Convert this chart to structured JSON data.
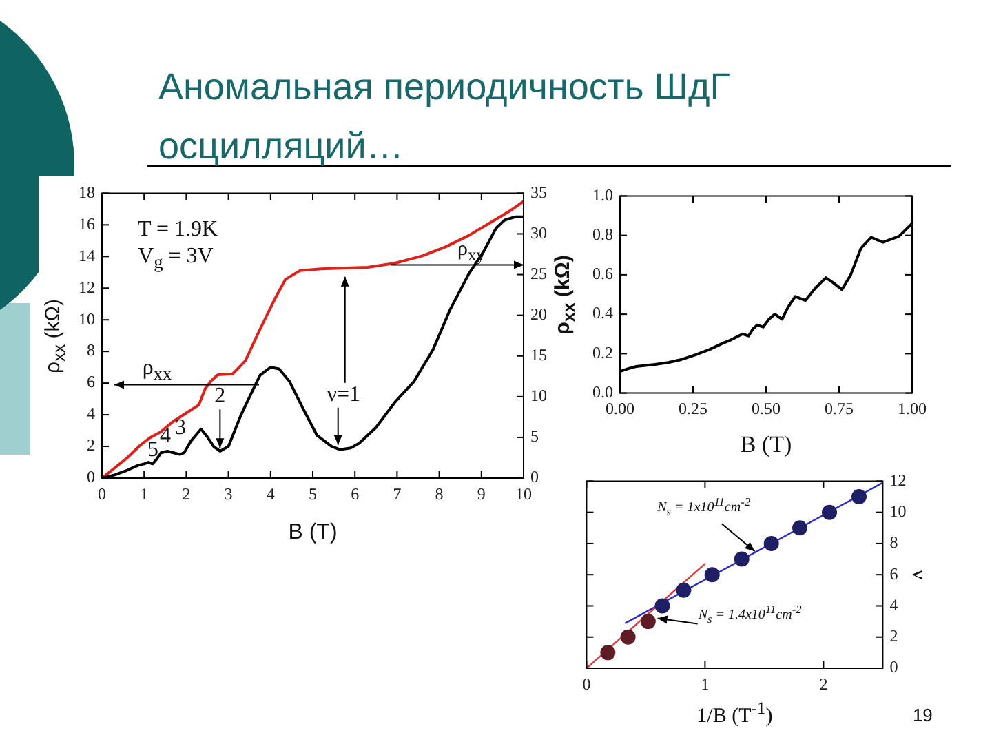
{
  "chart_data": [
    {
      "type": "line",
      "title": "Аномальная периодичность ШдГ осцилляций…",
      "xlabel": "B (T)",
      "ylabel": "ρ$_{xx}$ (kΩ)",
      "xlim": [
        0,
        10
      ],
      "xticks": [
        0,
        1,
        2,
        3,
        4,
        5,
        6,
        7,
        8,
        9,
        10
      ],
      "ylim": [
        0,
        18
      ],
      "yticks": [
        0,
        2,
        4,
        6,
        8,
        10,
        12,
        14,
        16,
        18
      ],
      "y2lim": [
        0,
        35
      ],
      "y2ticks": [
        0,
        5,
        10,
        15,
        20,
        25,
        30,
        35
      ],
      "marker": "none",
      "series": [
        {
          "color": "#000000",
          "x": [
            0,
            0.3,
            0.6,
            0.85,
            1.0,
            1.1,
            1.2,
            1.3,
            1.4,
            1.55,
            1.7,
            1.85,
            1.95,
            2.1,
            2.35,
            2.5,
            2.65,
            2.8,
            3.0,
            3.3,
            3.55,
            3.75,
            4.0,
            4.2,
            4.45,
            4.75,
            5.1,
            5.45,
            5.65,
            5.9,
            6.1,
            6.5,
            6.95,
            7.4,
            7.85,
            8.25,
            8.7,
            9.05,
            9.35,
            9.55,
            9.8,
            10
          ],
          "values": [
            0,
            0.2,
            0.5,
            0.8,
            0.9,
            1.0,
            0.9,
            1.2,
            1.6,
            1.7,
            1.6,
            1.5,
            1.6,
            2.3,
            3.1,
            2.6,
            2.0,
            1.7,
            2.0,
            4.0,
            5.4,
            6.5,
            7.0,
            6.9,
            6.1,
            4.5,
            2.7,
            2.0,
            1.8,
            1.9,
            2.2,
            3.2,
            4.8,
            6.1,
            8.1,
            10.6,
            12.9,
            14.3,
            15.8,
            16.3,
            16.5,
            16.5
          ]
        },
        {
          "color": "#e0201b",
          "axis": "y2",
          "x": [
            0,
            0.6,
            0.9,
            1.15,
            1.4,
            1.7,
            2.0,
            2.3,
            2.45,
            2.6,
            2.75,
            3.1,
            3.4,
            3.75,
            4.1,
            4.35,
            4.7,
            5.2,
            6.3,
            6.95,
            7.6,
            8.15,
            8.7,
            9.25,
            9.7,
            10
          ],
          "values": [
            0,
            2.5,
            4,
            5,
            5.7,
            7,
            8,
            9,
            11,
            12,
            12.7,
            12.8,
            14.4,
            18.3,
            22,
            24.4,
            25.5,
            25.7,
            25.9,
            26.4,
            27.3,
            28.4,
            29.8,
            31.5,
            32.9,
            34
          ]
        }
      ],
      "annotations": [
        "T = 1.9K",
        "V$_{g}$ = 3V",
        "ρ$_{xx}$",
        "ρ$_{xy}$",
        {
          "text": "2",
          "x": 2.8,
          "y": 1.9
        },
        "3",
        "4",
        "5",
        {
          "text": "ν=1",
          "x": 5.6,
          "y": 2.1
        }
      ]
    },
    {
      "type": "line",
      "xlabel": "B (T)",
      "ylabel": "ρ$_{xx}$ (kΩ)",
      "xlim": [
        0,
        1
      ],
      "xticks": [
        {
          "value": 0,
          "label": "0.00"
        },
        0.25,
        {
          "value": 0.5,
          "label": "0.50"
        },
        0.75,
        {
          "value": 1,
          "label": "1.00"
        }
      ],
      "ylim": [
        0,
        1
      ],
      "yticks": [
        {
          "value": 0,
          "label": "0.0"
        },
        0.2,
        0.4,
        0.6,
        0.8,
        {
          "value": 1,
          "label": "1.0"
        }
      ],
      "marker": "none",
      "series": [
        {
          "color": "#000000",
          "x": [
            0,
            0.03,
            0.055,
            0.12,
            0.165,
            0.21,
            0.26,
            0.305,
            0.355,
            0.38,
            0.4,
            0.42,
            0.44,
            0.455,
            0.47,
            0.49,
            0.51,
            0.53,
            0.555,
            0.575,
            0.6,
            0.635,
            0.67,
            0.705,
            0.73,
            0.76,
            0.79,
            0.825,
            0.86,
            0.9,
            0.955,
            1.0
          ],
          "values": [
            0.11,
            0.125,
            0.135,
            0.145,
            0.155,
            0.17,
            0.195,
            0.22,
            0.255,
            0.27,
            0.285,
            0.3,
            0.29,
            0.325,
            0.345,
            0.335,
            0.375,
            0.4,
            0.375,
            0.435,
            0.49,
            0.47,
            0.535,
            0.585,
            0.56,
            0.525,
            0.6,
            0.735,
            0.79,
            0.765,
            0.795,
            0.86
          ]
        }
      ]
    },
    {
      "type": "scatter",
      "xlabel": "1/B (T$^{-1}$)",
      "ylabel": "ν",
      "xlim": [
        0,
        2.5
      ],
      "xticks": [
        0,
        1,
        2
      ],
      "ylim": [
        0,
        12
      ],
      "yticks": [
        0,
        2,
        4,
        6,
        8,
        10,
        12
      ],
      "marker": "circle",
      "series": [
        {
          "color": "#5e1c26",
          "x": [
            0.18,
            0.35,
            0.52
          ],
          "values": [
            1,
            2,
            3
          ]
        },
        {
          "color": "#1f1f66",
          "x": [
            0.64,
            0.82,
            1.06,
            1.31,
            1.56,
            1.8,
            2.05,
            2.3
          ],
          "values": [
            4,
            5,
            6,
            7,
            8,
            9,
            10,
            11
          ]
        },
        {
          "type": "line",
          "marker": "none",
          "color": "#e03a3a",
          "x": [
            0,
            1.0
          ],
          "values": [
            0,
            6.7
          ]
        },
        {
          "type": "line",
          "marker": "none",
          "color": "#2b2bc8",
          "x": [
            0.33,
            2.5
          ],
          "values": [
            2.9,
            11.9
          ]
        }
      ],
      "annotations": [
        {
          "text": "N$_{s}$ = 1x10$^{11}$cm$^{-2}$",
          "x": 1.42,
          "y": 7.5
        },
        {
          "text": "N$_{s}$ = 1.4x10$^{11}$cm$^{-2}$",
          "x": 0.6,
          "y": 3.2
        },
        "19"
      ]
    }
  ]
}
